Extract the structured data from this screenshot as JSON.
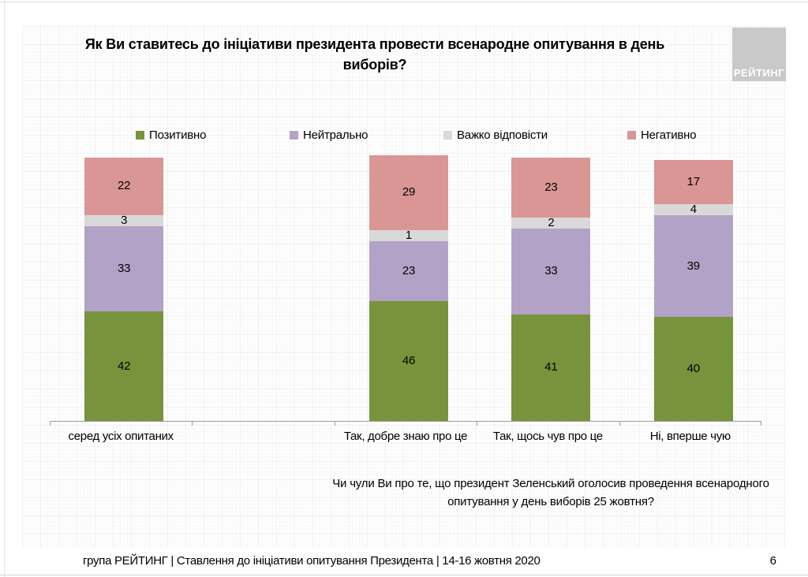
{
  "title": "Як Ви ставитесь до ініціативи президента провести всенародне опитування в день виборів?",
  "logo": {
    "text": "РЕЙТИНГ"
  },
  "legend": [
    {
      "label": "Позитивно",
      "color": "#77933C"
    },
    {
      "label": "Нейтрально",
      "color": "#B3A2C7"
    },
    {
      "label": "Важко відповісти",
      "color": "#D9D9D9"
    },
    {
      "label": "Негативно",
      "color": "#D99694"
    }
  ],
  "chart_data": {
    "type": "bar",
    "stacked": true,
    "title": "Як Ви ставитесь до ініціативи президента провести всенародне опитування в день виборів?",
    "categories": [
      "серед усіх опитаних",
      "Так, добре знаю про це",
      "Так, щось чув про це",
      "Ні, вперше чую"
    ],
    "series": [
      {
        "name": "Позитивно",
        "color": "#77933C",
        "values": [
          42,
          46,
          41,
          40
        ]
      },
      {
        "name": "Нейтрально",
        "color": "#B3A2C7",
        "values": [
          33,
          23,
          33,
          39
        ]
      },
      {
        "name": "Важко відповісти",
        "color": "#D9D9D9",
        "values": [
          3,
          1,
          2,
          4
        ]
      },
      {
        "name": "Негативно",
        "color": "#D99694",
        "values": [
          22,
          29,
          23,
          17
        ]
      }
    ],
    "value_labels": true,
    "legend_position": "top",
    "xlabel": "",
    "ylabel": "",
    "ylim": [
      0,
      100
    ],
    "grid": false,
    "axis_color": "#9c9c9c",
    "num_slots": 5,
    "category_slots": [
      0,
      2,
      3,
      4
    ]
  },
  "footnote": "Чи чули Ви про те, що президент Зеленський оголосив проведення всенародного опитування у день виборів 25 жовтня?",
  "footer": {
    "text": "група РЕЙТИНГ | Ставлення до ініціативи опитування Президента | 14-16 жовтня 2020",
    "page": "6"
  }
}
